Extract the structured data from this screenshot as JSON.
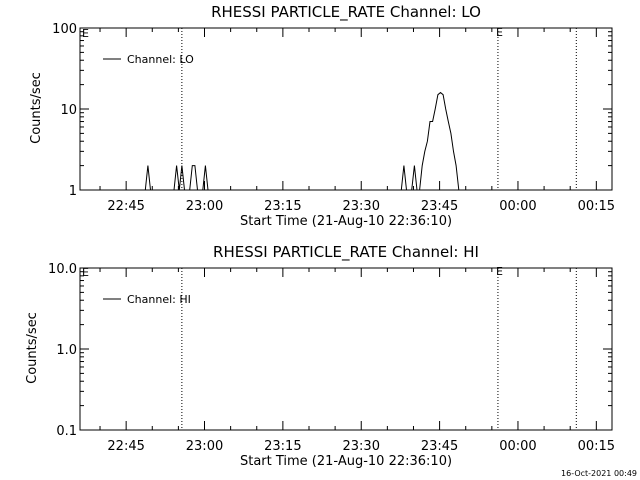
{
  "footer": {
    "timestamp": "16-Oct-2021 00:49"
  },
  "chart_data": [
    {
      "type": "line",
      "title": "RHESSI PARTICLE_RATE Channel: LO",
      "xlabel": "Start Time (21-Aug-10 22:36:10)",
      "ylabel": "Counts/sec",
      "y_scale": "log",
      "ylim": [
        1,
        100
      ],
      "y_ticks": [
        "1",
        "10",
        "100"
      ],
      "xlim": [
        "22:36:10",
        "00:18"
      ],
      "x_ticks": [
        "22:45",
        "23:00",
        "23:15",
        "23:30",
        "23:45",
        "00:00",
        "00:15"
      ],
      "legend": {
        "position": "top-left",
        "entries": [
          "Channel: LO"
        ]
      },
      "markers": [
        {
          "label": "",
          "time": "22:55:40"
        },
        {
          "label": "E",
          "time": "23:56:10"
        },
        {
          "label": "",
          "time": "00:11:10"
        }
      ],
      "corner_label": "E",
      "series": [
        {
          "name": "Channel: LO",
          "x": [
            "22:36:10",
            "22:48:40",
            "22:49:10",
            "22:49:40",
            "22:52:40",
            "22:53:10",
            "22:53:40",
            "22:54:10",
            "22:54:40",
            "22:55:10",
            "22:55:40",
            "22:56:10",
            "22:57:10",
            "22:57:40",
            "22:58:10",
            "22:58:40",
            "22:59:40",
            "23:00:10",
            "23:00:40",
            "23:37:40",
            "23:38:10",
            "23:38:40",
            "23:39:40",
            "23:40:10",
            "23:40:40",
            "23:41:10",
            "23:41:40",
            "23:42:10",
            "23:42:40",
            "23:43:10",
            "23:43:40",
            "23:44:10",
            "23:44:40",
            "23:45:10",
            "23:45:40",
            "23:46:10",
            "23:46:40",
            "23:47:10",
            "23:47:40",
            "23:48:10",
            "23:48:40",
            "23:49:10",
            "23:50:10",
            "00:18:00"
          ],
          "y": [
            1,
            1,
            2,
            1,
            1,
            1,
            1,
            1,
            2,
            1,
            2,
            1,
            1,
            2,
            2,
            1,
            1,
            2,
            1,
            1,
            2,
            1,
            1,
            2,
            1,
            1,
            2,
            3,
            4,
            7,
            7,
            10,
            15,
            16,
            15,
            10,
            7,
            5,
            3,
            2,
            1,
            1,
            1,
            1
          ]
        }
      ]
    },
    {
      "type": "line",
      "title": "RHESSI PARTICLE_RATE Channel: HI",
      "xlabel": "Start Time (21-Aug-10 22:36:10)",
      "ylabel": "Counts/sec",
      "y_scale": "log",
      "ylim": [
        0.1,
        10
      ],
      "y_ticks": [
        "0.1",
        "1.0",
        "10.0"
      ],
      "xlim": [
        "22:36:10",
        "00:18"
      ],
      "x_ticks": [
        "22:45",
        "23:00",
        "23:15",
        "23:30",
        "23:45",
        "00:00",
        "00:15"
      ],
      "legend": {
        "position": "top-left",
        "entries": [
          "Channel: HI"
        ]
      },
      "markers": [
        {
          "label": "",
          "time": "22:55:40"
        },
        {
          "label": "E",
          "time": "23:56:10"
        },
        {
          "label": "",
          "time": "00:11:10"
        }
      ],
      "corner_label": "E",
      "series": [
        {
          "name": "Channel: HI",
          "x": [],
          "y": []
        }
      ]
    }
  ]
}
